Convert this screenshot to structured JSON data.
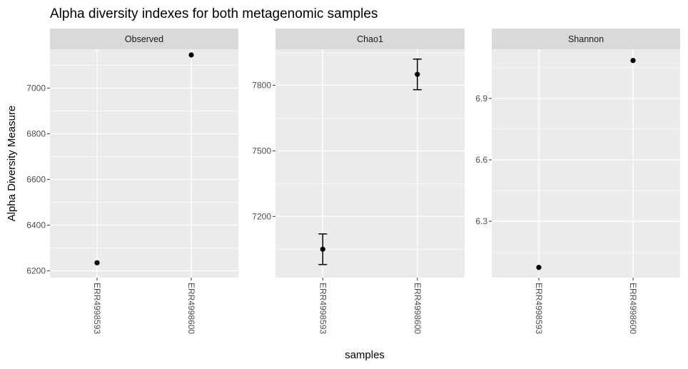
{
  "chart_data": {
    "type": "scatter",
    "title": "Alpha diversity indexes for both metagenomic samples",
    "xlabel": "samples",
    "ylabel": "Alpha Diversity Measure",
    "categories": [
      "ERR4998593",
      "ERR4998600"
    ],
    "colors": {
      "panel_background": "#ebebeb",
      "strip_background": "#d9d9d9",
      "grid": "#ffffff",
      "points": "#000000"
    },
    "grid": true,
    "facets": [
      {
        "name": "Observed",
        "ylim": [
          6170,
          7170
        ],
        "yticks": [
          6200,
          6400,
          6600,
          6800,
          7000
        ],
        "values": [
          6235,
          7145
        ],
        "errors": [
          null,
          null
        ]
      },
      {
        "name": "Chao1",
        "ylim": [
          6920,
          7965
        ],
        "yticks": [
          7200,
          7500,
          7800
        ],
        "values": [
          7050,
          7850
        ],
        "errors": [
          [
            6980,
            7120
          ],
          [
            7780,
            7920
          ]
        ]
      },
      {
        "name": "Shannon",
        "ylim": [
          6.025,
          7.14
        ],
        "yticks": [
          6.3,
          6.6,
          6.9
        ],
        "values": [
          6.075,
          7.085
        ],
        "errors": [
          null,
          null
        ]
      }
    ]
  }
}
